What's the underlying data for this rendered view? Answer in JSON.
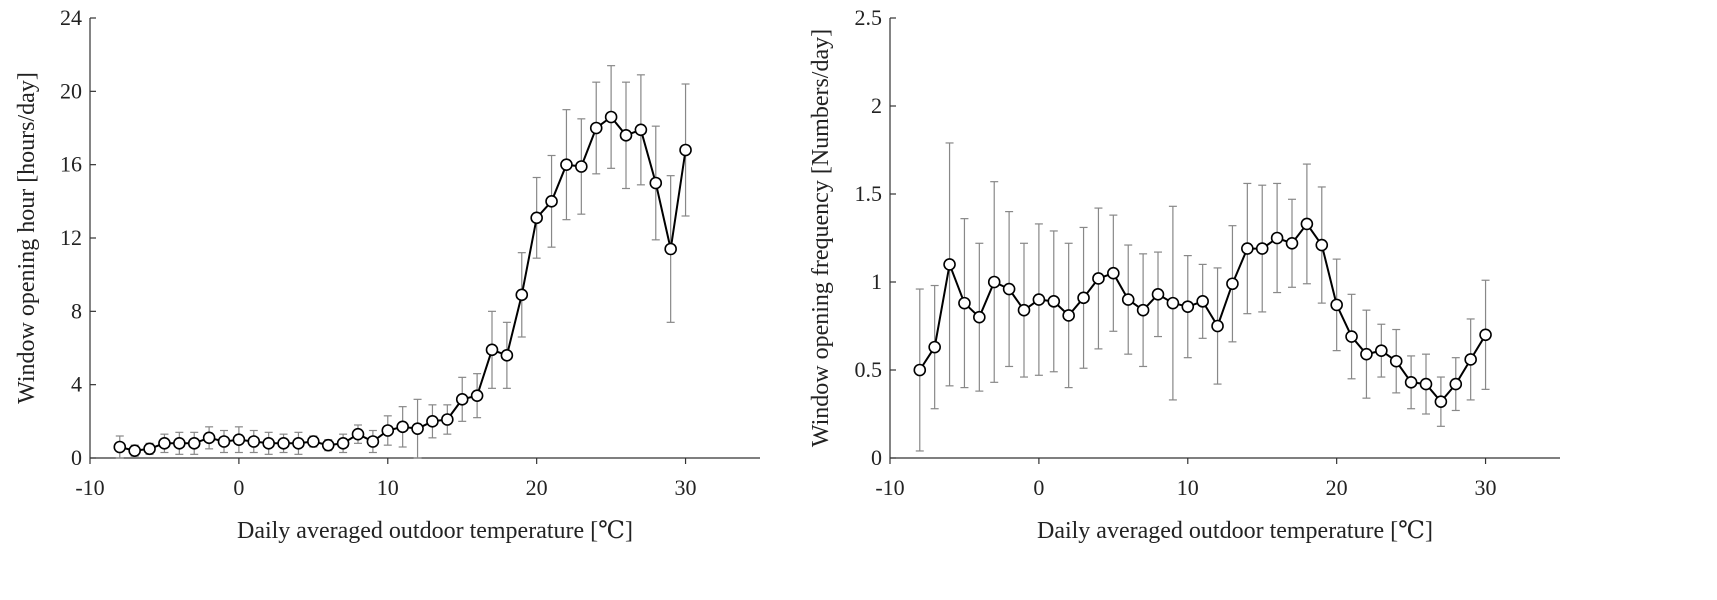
{
  "chart_data": [
    {
      "type": "line",
      "xlabel": "Daily averaged outdoor temperature [℃]",
      "ylabel": "Window opening hour [hours/day]",
      "xlim": [
        -10,
        35
      ],
      "ylim": [
        0,
        24
      ],
      "x_ticks": [
        -10,
        0,
        10,
        20,
        30
      ],
      "y_ticks": [
        0,
        4,
        8,
        12,
        16,
        20,
        24
      ],
      "grid": false,
      "marker": "open-circle",
      "series": [
        {
          "x": [
            -8,
            -7,
            -6,
            -5,
            -4,
            -3,
            -2,
            -1,
            0,
            1,
            2,
            3,
            4,
            5,
            6,
            7,
            8,
            9,
            10,
            11,
            12,
            13,
            14,
            15,
            16,
            17,
            18,
            19,
            20,
            21,
            22,
            23,
            24,
            25,
            26,
            27,
            28,
            29,
            30
          ],
          "y": [
            0.6,
            0.4,
            0.5,
            0.8,
            0.8,
            0.8,
            1.1,
            0.9,
            1.0,
            0.9,
            0.8,
            0.8,
            0.8,
            0.9,
            0.7,
            0.8,
            1.3,
            0.9,
            1.5,
            1.7,
            1.6,
            2.0,
            2.1,
            3.2,
            3.4,
            5.9,
            5.6,
            8.9,
            13.1,
            14.0,
            16.0,
            15.9,
            18.0,
            18.6,
            17.6,
            17.9,
            15.0,
            11.4,
            16.8
          ],
          "err": [
            0.6,
            0.3,
            0.3,
            0.5,
            0.6,
            0.6,
            0.6,
            0.6,
            0.7,
            0.6,
            0.6,
            0.5,
            0.6,
            0.3,
            0.3,
            0.5,
            0.5,
            0.6,
            0.8,
            1.1,
            1.6,
            0.9,
            0.8,
            1.2,
            1.2,
            2.1,
            1.8,
            2.3,
            2.2,
            2.5,
            3.0,
            2.6,
            2.5,
            2.8,
            2.9,
            3.0,
            3.1,
            4.0,
            3.6
          ]
        }
      ]
    },
    {
      "type": "line",
      "xlabel": "Daily averaged outdoor temperature [℃]",
      "ylabel": "Window opening frequency [Numbers/day]",
      "xlim": [
        -10,
        35
      ],
      "ylim": [
        0,
        2.5
      ],
      "x_ticks": [
        -10,
        0,
        10,
        20,
        30
      ],
      "y_ticks": [
        0,
        0.5,
        1,
        1.5,
        2,
        2.5
      ],
      "grid": false,
      "marker": "open-circle",
      "series": [
        {
          "x": [
            -8,
            -7,
            -6,
            -5,
            -4,
            -3,
            -2,
            -1,
            0,
            1,
            2,
            3,
            4,
            5,
            6,
            7,
            8,
            9,
            10,
            11,
            12,
            13,
            14,
            15,
            16,
            17,
            18,
            19,
            20,
            21,
            22,
            23,
            24,
            25,
            26,
            27,
            28,
            29,
            30
          ],
          "y": [
            0.5,
            0.63,
            1.1,
            0.88,
            0.8,
            1.0,
            0.96,
            0.84,
            0.9,
            0.89,
            0.81,
            0.91,
            1.02,
            1.05,
            0.9,
            0.84,
            0.93,
            0.88,
            0.86,
            0.89,
            0.75,
            0.99,
            1.19,
            1.19,
            1.25,
            1.22,
            1.33,
            1.21,
            0.87,
            0.69,
            0.59,
            0.61,
            0.55,
            0.43,
            0.42,
            0.32,
            0.42,
            0.56,
            0.7
          ],
          "err": [
            0.46,
            0.35,
            0.69,
            0.48,
            0.42,
            0.57,
            0.44,
            0.38,
            0.43,
            0.4,
            0.41,
            0.4,
            0.4,
            0.33,
            0.31,
            0.32,
            0.24,
            0.55,
            0.29,
            0.21,
            0.33,
            0.33,
            0.37,
            0.36,
            0.31,
            0.25,
            0.34,
            0.33,
            0.26,
            0.24,
            0.25,
            0.15,
            0.18,
            0.15,
            0.17,
            0.14,
            0.15,
            0.23,
            0.31
          ]
        }
      ]
    }
  ]
}
